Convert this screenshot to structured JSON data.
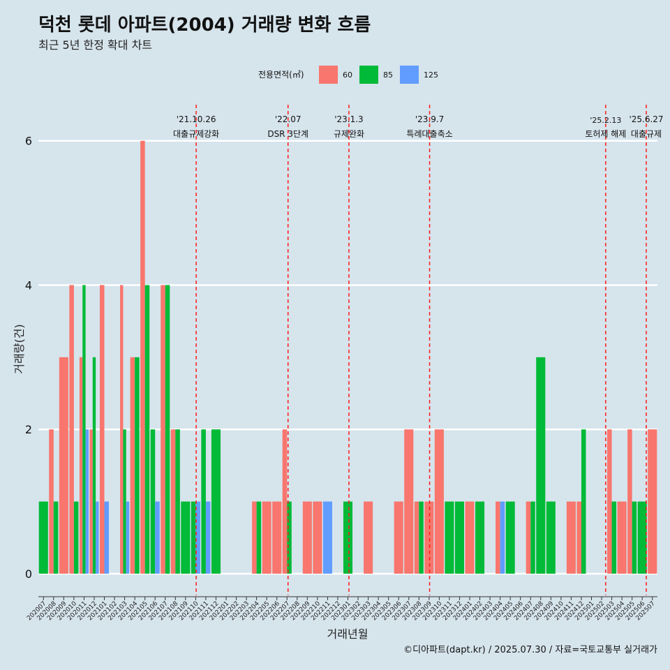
{
  "chart_data": {
    "type": "bar",
    "title": "덕천 롯데 아파트(2004) 거래량 변화 흐름",
    "subtitle": "최근 5년 한정 확대 차트",
    "xlabel": "거래년월",
    "ylabel": "거래량(건)",
    "ylim": [
      -0.3,
      6.5
    ],
    "yticks": [
      0,
      2,
      4,
      6
    ],
    "legend_title": "전용면적(㎡)",
    "legend_position": "top",
    "grid": "horizontal-major",
    "categories": [
      "202007",
      "202008",
      "202009",
      "202010",
      "202011",
      "202012",
      "202101",
      "202102",
      "202103",
      "202104",
      "202105",
      "202106",
      "202107",
      "202108",
      "202109",
      "202110",
      "202111",
      "202112",
      "202201",
      "202202",
      "202203",
      "202204",
      "202205",
      "202206",
      "202207",
      "202208",
      "202209",
      "202210",
      "202211",
      "202212",
      "202301",
      "202302",
      "202303",
      "202304",
      "202305",
      "202306",
      "202307",
      "202308",
      "202309",
      "202310",
      "202311",
      "202312",
      "202401",
      "202402",
      "202403",
      "202404",
      "202405",
      "202406",
      "202407",
      "202408",
      "202409",
      "202410",
      "202411",
      "202412",
      "202501",
      "202502",
      "202503",
      "202504",
      "202505",
      "202506",
      "202507"
    ],
    "series": [
      {
        "name": "60",
        "color": "#f8766d",
        "values": [
          0,
          2,
          3,
          4,
          3,
          2,
          4,
          0,
          4,
          3,
          6,
          0,
          4,
          2,
          0,
          0,
          0,
          0,
          0,
          0,
          0,
          1,
          1,
          1,
          2,
          0,
          1,
          1,
          0,
          0,
          0,
          0,
          1,
          0,
          0,
          1,
          2,
          1,
          1,
          2,
          0,
          0,
          1,
          0,
          0,
          1,
          0,
          0,
          1,
          0,
          0,
          0,
          1,
          1,
          0,
          0,
          2,
          1,
          2,
          0,
          2
        ]
      },
      {
        "name": "85",
        "color": "#00ba38",
        "values": [
          1,
          1,
          0,
          1,
          4,
          3,
          0,
          0,
          2,
          3,
          4,
          2,
          4,
          2,
          1,
          1,
          2,
          2,
          0,
          0,
          0,
          1,
          0,
          0,
          1,
          0,
          0,
          0,
          0,
          0,
          1,
          0,
          0,
          0,
          0,
          0,
          0,
          1,
          0,
          0,
          1,
          1,
          0,
          1,
          0,
          0,
          1,
          0,
          1,
          3,
          1,
          0,
          0,
          2,
          0,
          0,
          1,
          0,
          1,
          1,
          0
        ]
      },
      {
        "name": "125",
        "color": "#619cff",
        "values": [
          0,
          0,
          0,
          0,
          2,
          1,
          1,
          0,
          1,
          0,
          0,
          1,
          0,
          0,
          0,
          1,
          1,
          0,
          0,
          0,
          0,
          0,
          0,
          0,
          0,
          0,
          0,
          0,
          1,
          0,
          0,
          0,
          0,
          0,
          0,
          0,
          0,
          0,
          0,
          0,
          0,
          0,
          0,
          0,
          0,
          1,
          0,
          0,
          0,
          0,
          0,
          0,
          0,
          0,
          0,
          0,
          0,
          0,
          0,
          0,
          0
        ]
      }
    ],
    "events": [
      {
        "x": 15.05,
        "date": "'21.10.26",
        "label": "대출규제강화"
      },
      {
        "x": 24.1,
        "date": "'22.07",
        "label": "DSR 3단계"
      },
      {
        "x": 30.1,
        "date": "'23.1.3",
        "label": "규제완화"
      },
      {
        "x": 38.05,
        "date": "'23.9.7",
        "label": "특례대출축소"
      },
      {
        "x": 55.4,
        "date": "'25.2.13",
        "label": "토허제 해제"
      },
      {
        "x": 59.4,
        "date": "'25.6.27",
        "label": "대출규제"
      }
    ],
    "caption": "©디아파트(dapt.kr) / 2025.07.30 / 자료=국토교통부 실거래가"
  }
}
